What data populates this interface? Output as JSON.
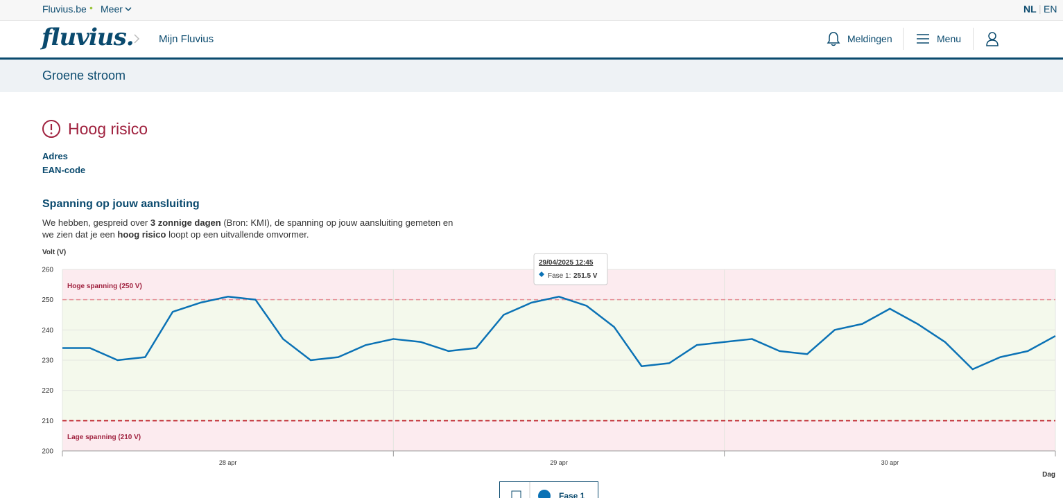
{
  "topbar": {
    "site": "Fluvius.be",
    "more": "Meer",
    "languages": [
      "NL",
      "EN"
    ]
  },
  "header": {
    "logo": "fluvius.",
    "breadcrumb": "Mijn Fluvius",
    "notifications": "Meldingen",
    "menu": "Menu"
  },
  "subheader": {
    "title": "Groene stroom"
  },
  "status": {
    "title": "Hoog risico"
  },
  "details": [
    "Adres",
    "EAN-code"
  ],
  "section": {
    "title": "Spanning op jouw aansluiting",
    "text": [
      {
        "text": "We hebben, gespreid over ",
        "bold": false
      },
      {
        "text": "3 zonnige dagen",
        "bold": true
      },
      {
        "text": " (Bron: KMI), de spanning op jouw aansluiting gemeten en we zien dat je een ",
        "bold": false
      },
      {
        "text": "hoog risico",
        "bold": true
      },
      {
        "text": " loopt op een uitvallende omvormer.",
        "bold": false
      }
    ]
  },
  "chart_data": {
    "type": "line",
    "y_label": "Volt (V)",
    "x_label": "Dag",
    "x": [
      "28/04/2025 00:00",
      "28/04/2025 02:00",
      "28/04/2025 04:00",
      "28/04/2025 06:00",
      "28/04/2025 08:00",
      "28/04/2025 10:00",
      "28/04/2025 12:00",
      "28/04/2025 14:00",
      "28/04/2025 16:00",
      "28/04/2025 18:00",
      "28/04/2025 20:00",
      "28/04/2025 22:00",
      "29/04/2025 00:00",
      "29/04/2025 02:00",
      "29/04/2025 04:00",
      "29/04/2025 06:00",
      "29/04/2025 08:00",
      "29/04/2025 10:00",
      "29/04/2025 12:00",
      "29/04/2025 14:00",
      "29/04/2025 16:00",
      "29/04/2025 18:00",
      "29/04/2025 20:00",
      "29/04/2025 22:00",
      "30/04/2025 00:00",
      "30/04/2025 02:00",
      "30/04/2025 04:00",
      "30/04/2025 06:00",
      "30/04/2025 08:00",
      "30/04/2025 10:00",
      "30/04/2025 12:00",
      "30/04/2025 14:00",
      "30/04/2025 16:00",
      "30/04/2025 18:00",
      "30/04/2025 20:00",
      "30/04/2025 22:00",
      "01/05/2025 00:00"
    ],
    "series": [
      {
        "name": "Fase 1",
        "color": "#0b72b5",
        "values": [
          234,
          234,
          230,
          231,
          246,
          249,
          251,
          250,
          237,
          230,
          231,
          235,
          237,
          236,
          233,
          234,
          245,
          249,
          251,
          248,
          241,
          228,
          229,
          235,
          236,
          237,
          233,
          232,
          240,
          242,
          247,
          242,
          236,
          227,
          231,
          233,
          238
        ]
      }
    ],
    "day_ticks": [
      "28 apr",
      "29 apr",
      "30 apr"
    ],
    "ylim": [
      200,
      260
    ],
    "yticks": [
      200,
      210,
      220,
      230,
      240,
      250,
      260
    ],
    "grid": true,
    "thresholds": [
      {
        "label": "Hoge spanning (250 V)",
        "value": 250,
        "color": "#e58f96"
      },
      {
        "label": "Lage spanning (210 V)",
        "value": 210,
        "color": "#c0262f"
      }
    ],
    "tooltip": {
      "date": "29/04/2025 12:45",
      "series": "Fase 1:",
      "value": 251.5,
      "value_label": "251.5 V"
    }
  }
}
